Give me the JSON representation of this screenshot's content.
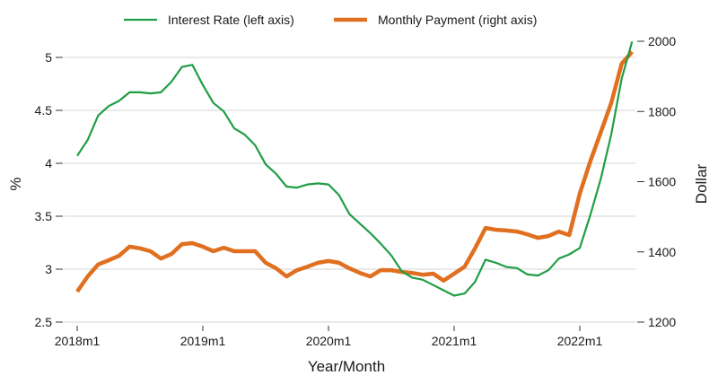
{
  "chart_data": {
    "type": "line",
    "title": "",
    "xlabel": "Year/Month",
    "ylabel_left": "%",
    "ylabel_right": "Dollar",
    "x_tick_labels": [
      "2018m1",
      "2019m1",
      "2020m1",
      "2021m1",
      "2022m1"
    ],
    "y_left_ticks": [
      "2.5",
      "3",
      "3.5",
      "4",
      "4.5",
      "5"
    ],
    "y_right_ticks": [
      "1200",
      "1400",
      "1600",
      "1800",
      "2000"
    ],
    "ylim_left": [
      2.5,
      5.15
    ],
    "ylim_right": [
      1200,
      2000
    ],
    "grid": "horizontal",
    "legend_position": "top",
    "x": [
      "2018m1",
      "2018m2",
      "2018m3",
      "2018m4",
      "2018m5",
      "2018m6",
      "2018m7",
      "2018m8",
      "2018m9",
      "2018m10",
      "2018m11",
      "2018m12",
      "2019m1",
      "2019m2",
      "2019m3",
      "2019m4",
      "2019m5",
      "2019m6",
      "2019m7",
      "2019m8",
      "2019m9",
      "2019m10",
      "2019m11",
      "2019m12",
      "2020m1",
      "2020m2",
      "2020m3",
      "2020m4",
      "2020m5",
      "2020m6",
      "2020m7",
      "2020m8",
      "2020m9",
      "2020m10",
      "2020m11",
      "2020m12",
      "2021m1",
      "2021m2",
      "2021m3",
      "2021m4",
      "2021m5",
      "2021m6",
      "2021m7",
      "2021m8",
      "2021m9",
      "2021m10",
      "2021m11",
      "2021m12",
      "2022m1",
      "2022m2",
      "2022m3",
      "2022m4",
      "2022m5",
      "2022m6"
    ],
    "series": [
      {
        "name": "Interest Rate (left axis)",
        "axis": "left",
        "color": "#1f9e45",
        "values": [
          4.07,
          4.22,
          4.45,
          4.54,
          4.59,
          4.67,
          4.67,
          4.66,
          4.67,
          4.77,
          4.91,
          4.93,
          4.74,
          4.57,
          4.49,
          4.33,
          4.27,
          4.17,
          3.99,
          3.9,
          3.78,
          3.77,
          3.8,
          3.81,
          3.8,
          3.7,
          3.52,
          3.43,
          3.34,
          3.24,
          3.13,
          2.98,
          2.92,
          2.9,
          2.85,
          2.8,
          2.75,
          2.77,
          2.88,
          3.09,
          3.06,
          3.02,
          3.01,
          2.95,
          2.94,
          2.99,
          3.1,
          3.14,
          3.2,
          3.51,
          3.85,
          4.27,
          4.8,
          5.15
        ]
      },
      {
        "name": "Monthly Payment (right axis)",
        "axis": "right",
        "color": "#e07020",
        "values": [
          1287,
          1330,
          1364,
          1376,
          1389,
          1415,
          1410,
          1402,
          1381,
          1394,
          1422,
          1425,
          1415,
          1402,
          1412,
          1402,
          1402,
          1402,
          1369,
          1353,
          1330,
          1348,
          1358,
          1369,
          1374,
          1369,
          1353,
          1340,
          1330,
          1348,
          1348,
          1343,
          1340,
          1335,
          1338,
          1318,
          1338,
          1358,
          1410,
          1468,
          1463,
          1461,
          1458,
          1450,
          1440,
          1445,
          1458,
          1448,
          1566,
          1658,
          1740,
          1824,
          1936,
          1970
        ]
      }
    ]
  },
  "legend": {
    "items": [
      {
        "label": "Interest Rate (left axis)",
        "color": "#1f9e45"
      },
      {
        "label": "Monthly Payment (right axis)",
        "color": "#e07020"
      }
    ]
  },
  "axes": {
    "x_title": "Year/Month",
    "left_title": "%",
    "right_title": "Dollar"
  }
}
